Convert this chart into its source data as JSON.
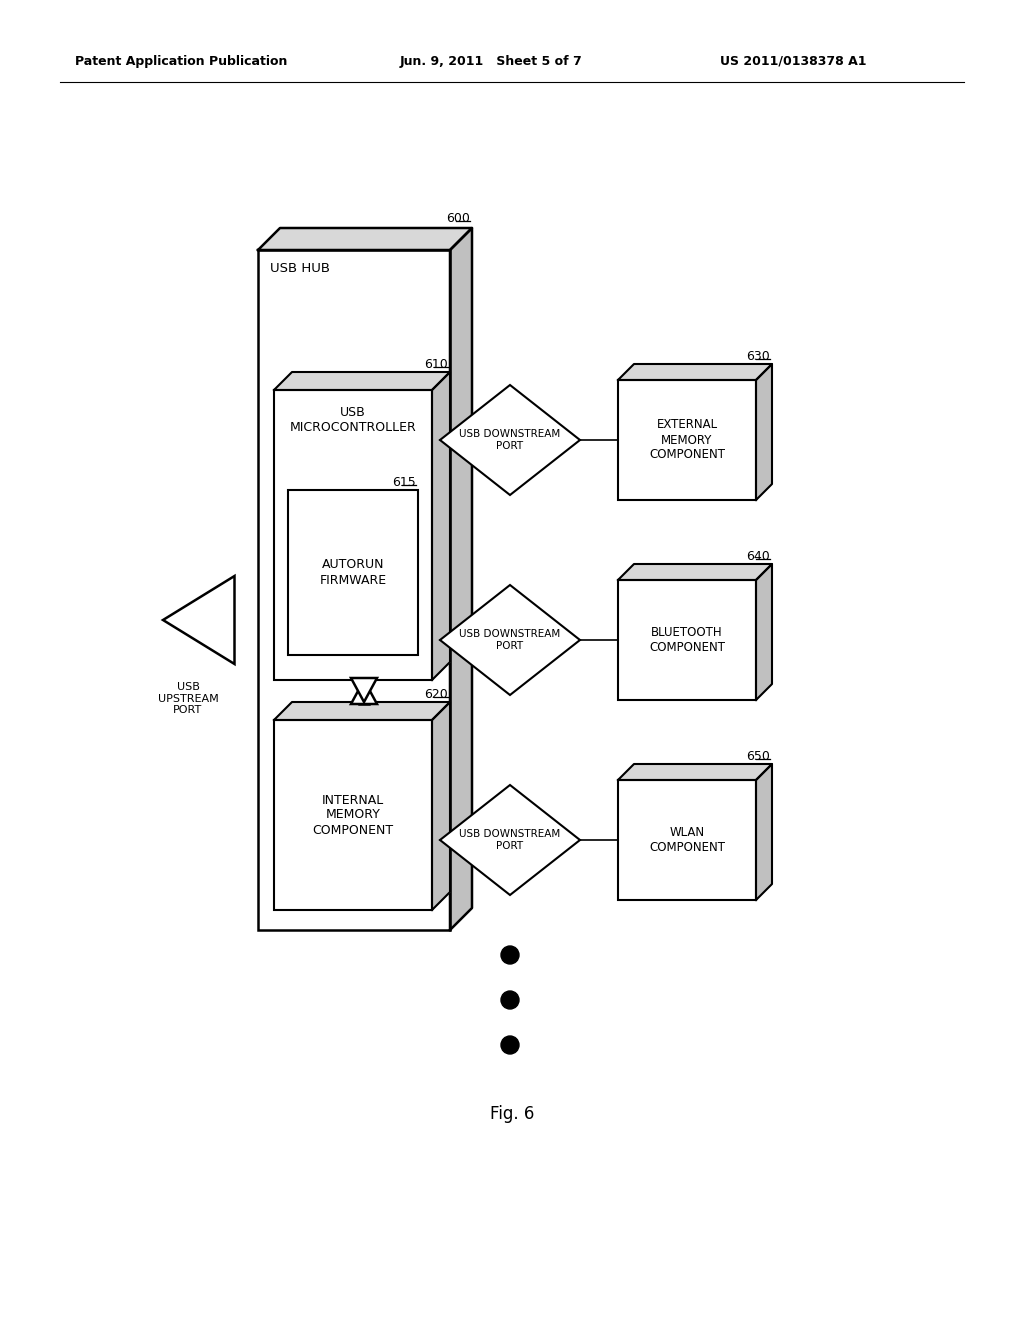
{
  "bg_color": "#ffffff",
  "header_left": "Patent Application Publication",
  "header_mid": "Jun. 9, 2011   Sheet 5 of 7",
  "header_right": "US 2011/0138378 A1",
  "fig_label": "Fig. 6",
  "ref_600": "600",
  "ref_610": "610",
  "ref_615": "615",
  "ref_620": "620",
  "ref_630": "630",
  "ref_640": "640",
  "ref_650": "650",
  "label_usb_hub": "USB HUB",
  "label_usb_mc": "USB\nMICROCONTROLLER",
  "label_autorun": "AUTORUN\nFIRMWARE",
  "label_internal": "INTERNAL\nMEMORY\nCOMPONENT",
  "label_ext_mem": "EXTERNAL\nMEMORY\nCOMPONENT",
  "label_bluetooth": "BLUETOOTH\nCOMPONENT",
  "label_wlan": "WLAN\nCOMPONENT",
  "label_usb_upstream": "USB\nUPSTREAM\nPORT",
  "label_ds_port": "USB DOWNSTREAM\nPORT"
}
